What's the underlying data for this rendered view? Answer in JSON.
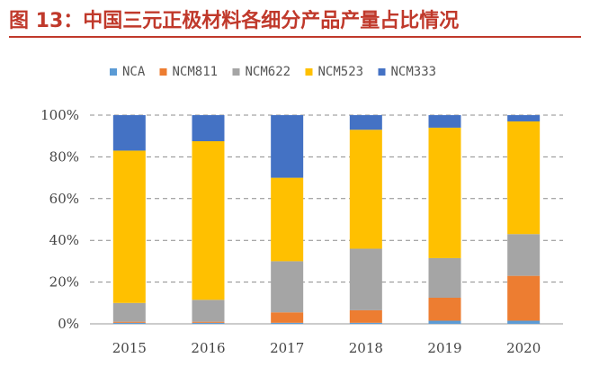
{
  "title": "图 13：中国三元正极材料各细分产品产量占比情况",
  "chart_data": {
    "type": "bar",
    "stacked": true,
    "categories": [
      "2015",
      "2016",
      "2017",
      "2018",
      "2019",
      "2020"
    ],
    "series": [
      {
        "name": "NCA",
        "color": "#5b9bd5",
        "values": [
          0.5,
          0.5,
          0.5,
          0.5,
          1.5,
          1.5
        ]
      },
      {
        "name": "NCM811",
        "color": "#ed7d31",
        "values": [
          0.5,
          0.5,
          5,
          6,
          11,
          21.5
        ]
      },
      {
        "name": "NCM622",
        "color": "#a5a5a5",
        "values": [
          9,
          10.5,
          24.5,
          29.5,
          19,
          20
        ]
      },
      {
        "name": "NCM523",
        "color": "#ffc000",
        "values": [
          73,
          76,
          40,
          57,
          62.5,
          54
        ]
      },
      {
        "name": "NCM333",
        "color": "#4472c4",
        "values": [
          17,
          12.5,
          30,
          7,
          6,
          3
        ]
      }
    ],
    "ylim": [
      0,
      100
    ],
    "yticks": [
      "0%",
      "20%",
      "40%",
      "60%",
      "80%",
      "100%"
    ],
    "grid": true,
    "legend": "top"
  }
}
